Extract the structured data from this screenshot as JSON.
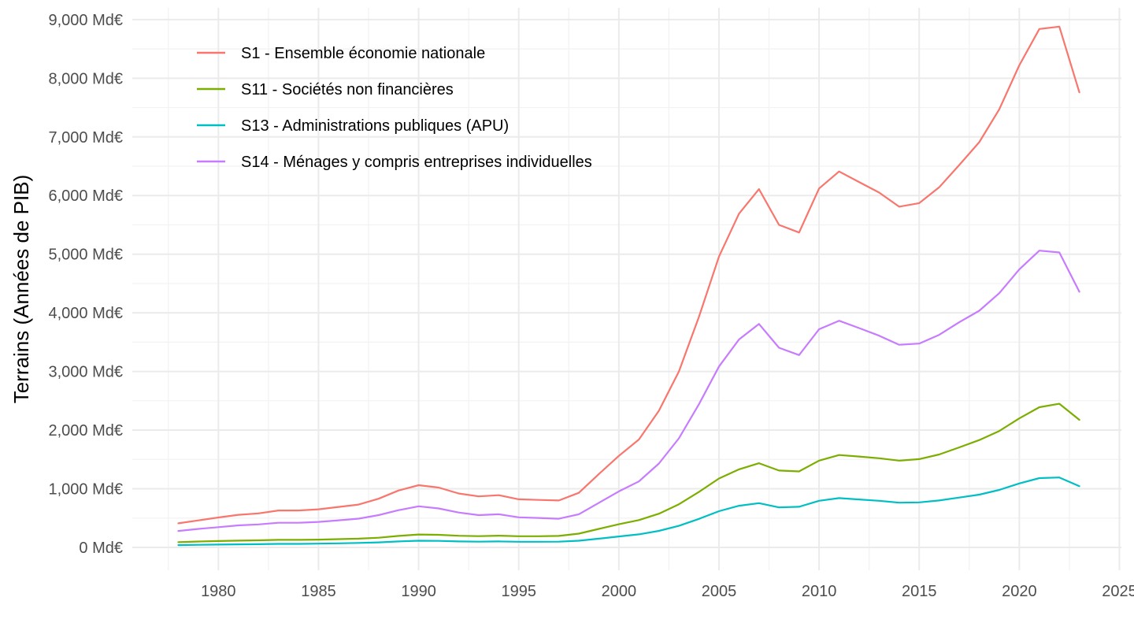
{
  "chart_data": {
    "type": "line",
    "title": "",
    "xlabel": "",
    "ylabel": "Terrains (Années de PIB)",
    "xlim": [
      1975.7,
      2025.1
    ],
    "ylim": [
      -390,
      9200
    ],
    "x_ticks": [
      1980,
      1985,
      1990,
      1995,
      2000,
      2005,
      2010,
      2015,
      2020,
      2025
    ],
    "x_tick_labels": [
      "1980",
      "1985",
      "1990",
      "1995",
      "2000",
      "2005",
      "2010",
      "2015",
      "2020",
      "2025"
    ],
    "y_ticks": [
      0,
      1000,
      2000,
      3000,
      4000,
      5000,
      6000,
      7000,
      8000,
      9000
    ],
    "y_tick_labels": [
      "0 Md€",
      "1,000 Md€",
      "2,000 Md€",
      "3,000 Md€",
      "4,000 Md€",
      "5,000 Md€",
      "6,000 Md€",
      "7,000 Md€",
      "8,000 Md€",
      "9,000 Md€"
    ],
    "grid": true,
    "legend_position": "top-left",
    "x": [
      1978,
      1979,
      1980,
      1981,
      1982,
      1983,
      1984,
      1985,
      1986,
      1987,
      1988,
      1989,
      1990,
      1991,
      1992,
      1993,
      1994,
      1995,
      1996,
      1997,
      1998,
      1999,
      2000,
      2001,
      2002,
      2003,
      2004,
      2005,
      2006,
      2007,
      2008,
      2009,
      2010,
      2011,
      2012,
      2013,
      2014,
      2015,
      2016,
      2017,
      2018,
      2019,
      2020,
      2021,
      2022,
      2023
    ],
    "series": [
      {
        "name": "S1 - Ensemble économie nationale",
        "color": "#F8766D",
        "values": [
          410,
          460,
          510,
          555,
          580,
          630,
          630,
          650,
          690,
          730,
          830,
          970,
          1060,
          1020,
          920,
          870,
          890,
          820,
          810,
          800,
          930,
          1250,
          1560,
          1840,
          2330,
          3000,
          3930,
          4960,
          5690,
          6110,
          5500,
          5370,
          6120,
          6410,
          6230,
          6050,
          5810,
          5870,
          6140,
          6520,
          6910,
          7470,
          8220,
          8840,
          8880,
          7760
        ]
      },
      {
        "name": "S11 - Sociétés non financières",
        "color": "#7CAE00",
        "values": [
          90,
          100,
          108,
          115,
          120,
          128,
          128,
          132,
          140,
          148,
          165,
          195,
          220,
          215,
          198,
          192,
          200,
          190,
          190,
          195,
          235,
          315,
          395,
          465,
          575,
          735,
          945,
          1175,
          1330,
          1435,
          1310,
          1295,
          1480,
          1575,
          1550,
          1520,
          1480,
          1505,
          1585,
          1705,
          1830,
          1985,
          2200,
          2390,
          2450,
          2175
        ]
      },
      {
        "name": "S13 - Administrations publiques (APU)",
        "color": "#00BFC4",
        "values": [
          38,
          44,
          48,
          52,
          55,
          60,
          60,
          64,
          70,
          76,
          86,
          102,
          114,
          111,
          102,
          98,
          102,
          96,
          96,
          98,
          114,
          148,
          186,
          222,
          282,
          368,
          486,
          618,
          710,
          755,
          682,
          692,
          795,
          840,
          818,
          795,
          762,
          768,
          800,
          850,
          900,
          980,
          1090,
          1182,
          1192,
          1045
        ]
      },
      {
        "name": "S14 - Ménages y compris entreprises individuelles",
        "color": "#C77CFF",
        "values": [
          280,
          315,
          345,
          375,
          392,
          420,
          420,
          435,
          462,
          490,
          550,
          635,
          700,
          665,
          595,
          550,
          565,
          512,
          502,
          488,
          565,
          760,
          955,
          1125,
          1430,
          1860,
          2440,
          3085,
          3545,
          3810,
          3405,
          3280,
          3720,
          3865,
          3740,
          3610,
          3455,
          3475,
          3625,
          3840,
          4035,
          4335,
          4740,
          5060,
          5030,
          4360
        ]
      }
    ]
  }
}
